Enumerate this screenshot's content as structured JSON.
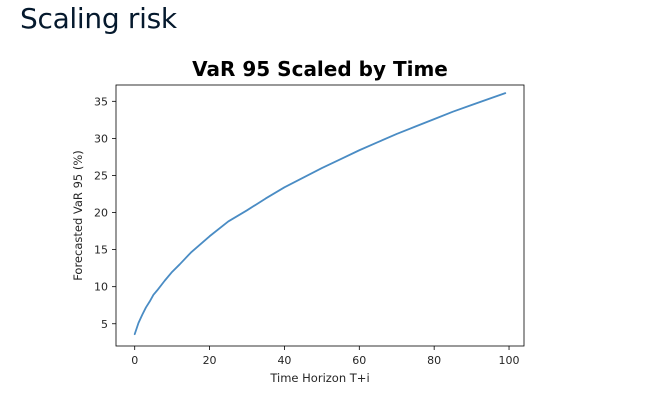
{
  "page": {
    "title": "Scaling risk"
  },
  "chart_data": {
    "type": "line",
    "title": "VaR 95 Scaled by Time",
    "xlabel": "Time Horizon T+i",
    "ylabel": "Forecasted VaR 95 (%)",
    "xlim": [
      -5,
      104
    ],
    "ylim": [
      2,
      37.2
    ],
    "xticks": [
      0,
      20,
      40,
      60,
      80,
      100
    ],
    "yticks": [
      5,
      10,
      15,
      20,
      25,
      30,
      35
    ],
    "series": [
      {
        "color": "#4a8cc4",
        "x": [
          0,
          1,
          2,
          3,
          4,
          5,
          6,
          8,
          10,
          12,
          15,
          20,
          25,
          30,
          35,
          40,
          45,
          50,
          55,
          60,
          65,
          70,
          75,
          80,
          85,
          90,
          95,
          99
        ],
        "y": [
          3.6,
          5.1,
          6.2,
          7.2,
          8.0,
          8.9,
          9.5,
          10.8,
          12.0,
          13.0,
          14.6,
          16.8,
          18.8,
          20.3,
          21.9,
          23.4,
          24.7,
          26.0,
          27.2,
          28.4,
          29.5,
          30.6,
          31.6,
          32.6,
          33.6,
          34.5,
          35.4,
          36.1
        ]
      }
    ]
  }
}
